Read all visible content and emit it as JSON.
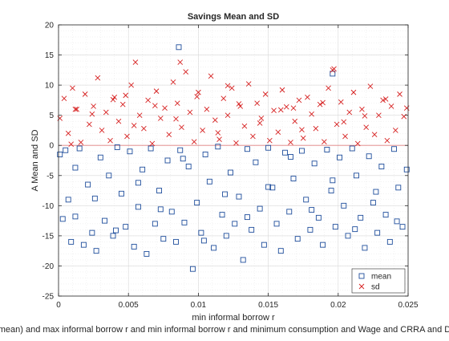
{
  "chart_data": {
    "type": "scatter",
    "title": "Savings Mean and SD",
    "xlabel": "min informal borrow r",
    "ylabel": "A Mean and SD",
    "caption": "mean) and max informal borrow r and min informal borrow r and minimum consumption and Wage and CRRA and D",
    "xlim": [
      0,
      0.025
    ],
    "ylim": [
      -25,
      20
    ],
    "xticks": [
      0,
      0.005,
      0.01,
      0.015,
      0.02,
      0.025
    ],
    "xtick_labels": [
      "0",
      "0.005",
      "0.01",
      "0.015",
      "0.02",
      "0.025"
    ],
    "yticks": [
      -25,
      -20,
      -15,
      -10,
      -5,
      0,
      5,
      10,
      15,
      20
    ],
    "ytick_labels": [
      "-25",
      "-20",
      "-15",
      "-10",
      "-5",
      "0",
      "5",
      "10",
      "15",
      "20"
    ],
    "grid": true,
    "minor_grid": true,
    "legend_placement": "bottom-right",
    "colors": {
      "mean": "#1f4e9c",
      "sd": "#d62020",
      "zero_line": "#e08080"
    },
    "series": [
      {
        "name": "mean",
        "marker": "square",
        "x": [
          0.0001,
          0.0003,
          0.0005,
          0.0007,
          0.0009,
          0.0012,
          0.0015,
          0.0018,
          0.0021,
          0.0024,
          0.0027,
          0.003,
          0.0033,
          0.0036,
          0.0039,
          0.0042,
          0.0045,
          0.0048,
          0.0051,
          0.0054,
          0.0057,
          0.006,
          0.0063,
          0.0066,
          0.0069,
          0.0072,
          0.0075,
          0.0078,
          0.0081,
          0.0084,
          0.0087,
          0.009,
          0.0093,
          0.0096,
          0.0099,
          0.0102,
          0.0105,
          0.0108,
          0.0111,
          0.0114,
          0.0117,
          0.012,
          0.0123,
          0.0126,
          0.0129,
          0.0132,
          0.0135,
          0.0138,
          0.0141,
          0.0144,
          0.0147,
          0.015,
          0.0153,
          0.0156,
          0.0159,
          0.0162,
          0.0165,
          0.0168,
          0.0171,
          0.0174,
          0.0177,
          0.018,
          0.0183,
          0.0186,
          0.0189,
          0.0192,
          0.0195,
          0.0198,
          0.0201,
          0.0204,
          0.0207,
          0.021,
          0.0213,
          0.0216,
          0.0219,
          0.0222,
          0.0225,
          0.0228,
          0.0231,
          0.0234,
          0.0237,
          0.024,
          0.0243,
          0.0246,
          0.0249,
          0.0012,
          0.0026,
          0.0041,
          0.0057,
          0.0073,
          0.0089,
          0.0104,
          0.0119,
          0.0135,
          0.015,
          0.0166,
          0.0181,
          0.0196,
          0.0212,
          0.0227,
          0.0242,
          0.0086,
          0.0196
        ],
        "y": [
          -1.5,
          -12.2,
          -0.8,
          -9.0,
          -16.0,
          -11.8,
          -0.5,
          -16.5,
          -6.5,
          -14.5,
          -17.5,
          -2.0,
          -12.5,
          -5.0,
          -15.0,
          -0.3,
          -8.0,
          -13.5,
          -1.0,
          -16.8,
          -10.2,
          -4.0,
          -18.0,
          -0.5,
          -13.0,
          -7.5,
          -15.5,
          -2.5,
          -11.0,
          -16.0,
          -0.8,
          -12.8,
          -3.5,
          -20.5,
          -9.5,
          -14.5,
          -1.5,
          -6.0,
          -17.0,
          -0.2,
          -11.5,
          -15.0,
          -4.5,
          -13.0,
          -8.5,
          -19.0,
          -0.6,
          -14.0,
          -2.8,
          -10.5,
          -16.5,
          -0.4,
          -7.0,
          -13.0,
          -17.5,
          -1.2,
          -11.0,
          -5.5,
          -15.5,
          -0.9,
          -9.0,
          -14.0,
          -3.0,
          -12.0,
          -16.5,
          -0.7,
          -7.5,
          -13.5,
          -2.0,
          -10.0,
          -15.0,
          -0.5,
          -5.0,
          -12.0,
          -17.0,
          -1.8,
          -9.5,
          -14.5,
          -3.5,
          -11.5,
          -16.0,
          -0.6,
          -7.0,
          -13.5,
          -4.0,
          -3.7,
          -8.8,
          -14.1,
          -6.2,
          -10.6,
          -2.2,
          -15.8,
          -8.1,
          -11.9,
          -6.9,
          -1.9,
          -10.7,
          -5.8,
          -13.9,
          -7.7,
          -12.6,
          16.3,
          11.9
        ]
      },
      {
        "name": "sd",
        "marker": "x",
        "x": [
          0.0001,
          0.0004,
          0.0007,
          0.001,
          0.0013,
          0.0016,
          0.0019,
          0.0022,
          0.0025,
          0.0028,
          0.0031,
          0.0034,
          0.0037,
          0.004,
          0.0043,
          0.0046,
          0.0049,
          0.0052,
          0.0055,
          0.0058,
          0.0061,
          0.0064,
          0.0067,
          0.007,
          0.0073,
          0.0076,
          0.0079,
          0.0082,
          0.0085,
          0.0088,
          0.0091,
          0.0094,
          0.0097,
          0.01,
          0.0103,
          0.0106,
          0.0109,
          0.0112,
          0.0115,
          0.0118,
          0.0121,
          0.0124,
          0.0127,
          0.013,
          0.0133,
          0.0136,
          0.0139,
          0.0142,
          0.0145,
          0.0148,
          0.0151,
          0.0154,
          0.0157,
          0.016,
          0.0163,
          0.0166,
          0.0169,
          0.0172,
          0.0175,
          0.0178,
          0.0181,
          0.0184,
          0.0187,
          0.019,
          0.0193,
          0.0196,
          0.0199,
          0.0202,
          0.0205,
          0.0208,
          0.0211,
          0.0214,
          0.0217,
          0.022,
          0.0223,
          0.0226,
          0.0229,
          0.0232,
          0.0235,
          0.0238,
          0.0241,
          0.0244,
          0.0247,
          0.0249,
          0.0009,
          0.0024,
          0.0039,
          0.0054,
          0.0069,
          0.0084,
          0.0099,
          0.0114,
          0.0129,
          0.0144,
          0.0159,
          0.0174,
          0.0189,
          0.0204,
          0.0219,
          0.0234,
          0.0012,
          0.0048,
          0.0087,
          0.0121,
          0.0168,
          0.0197
        ],
        "y": [
          4.5,
          7.8,
          2.0,
          9.5,
          6.0,
          0.5,
          8.5,
          3.5,
          6.5,
          11.2,
          2.5,
          5.5,
          0.8,
          8.0,
          4.0,
          6.8,
          1.5,
          10.0,
          13.8,
          5.0,
          2.8,
          7.5,
          0.3,
          9.0,
          4.5,
          6.2,
          1.8,
          10.5,
          7.0,
          3.0,
          12.2,
          5.5,
          0.6,
          8.8,
          2.5,
          6.0,
          11.5,
          4.2,
          1.0,
          7.8,
          5.0,
          9.5,
          0.4,
          6.5,
          3.2,
          10.2,
          1.5,
          7.0,
          4.5,
          8.5,
          0.8,
          5.8,
          2.2,
          9.2,
          6.4,
          0.5,
          4.0,
          7.5,
          1.2,
          8.0,
          5.2,
          2.8,
          6.8,
          0.6,
          9.5,
          12.5,
          3.5,
          7.2,
          1.5,
          5.5,
          8.8,
          0.3,
          6.0,
          3.0,
          9.8,
          1.8,
          5.0,
          7.5,
          0.8,
          6.5,
          2.5,
          8.5,
          4.8,
          6.2,
          0.2,
          5.2,
          7.6,
          3.3,
          6.6,
          4.4,
          8.1,
          2.1,
          6.9,
          3.7,
          5.9,
          2.6,
          7.1,
          3.9,
          4.9,
          7.7,
          6.0,
          8.3,
          13.8,
          9.9,
          6.2,
          12.7
        ]
      }
    ]
  }
}
